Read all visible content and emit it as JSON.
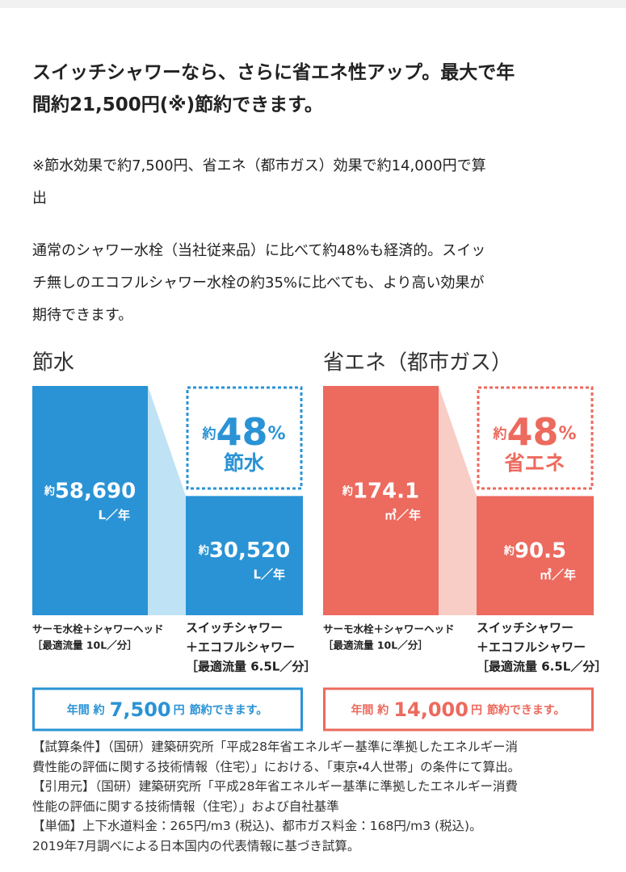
{
  "heading": [
    "スイッチシャワーなら、さらに省エネ性アップ。最大で年",
    "間約21,500円(※)節約できます。"
  ],
  "note": [
    "※節水効果で約7,500円、省エネ（都市ガス）効果で約14,000円で算",
    "出"
  ],
  "paragraph": [
    "通常のシャワー水栓（当社従来品）に比べて約48%も経済的。スイッ",
    "チ無しのエコフルシャワー水栓の約35%に比べても、より高い効果が",
    "期待できます。"
  ],
  "panels": [
    {
      "title": "節水",
      "color": "#2a93d5",
      "light": "#bfe2f5",
      "bars": [
        {
          "value": 58690,
          "prefix": "約",
          "value_label": "58,690",
          "unit": "L／年",
          "caption": [
            "サーモ水栓＋シャワーヘッド",
            "［最適流量 10L／分］"
          ]
        },
        {
          "value": 30520,
          "prefix": "約",
          "value_label": "30,520",
          "unit": "L／年",
          "caption": [
            "スイッチシャワー",
            "＋エコフルシャワー",
            "［最適流量 6.5L／分］"
          ]
        }
      ],
      "reduction": {
        "prefix": "約",
        "value": 48,
        "value_label": "48",
        "unit": "%",
        "label": "節水"
      },
      "savings": {
        "text1": "年間 約",
        "value": 7500,
        "value_label": "7,500",
        "unit": "円",
        "text2": "節約できます。"
      }
    },
    {
      "title": "省エネ（都市ガス）",
      "color": "#ec6a5e",
      "light": "#f8cdc6",
      "bars": [
        {
          "value": 174.1,
          "prefix": "約",
          "value_label": "174.1",
          "unit": "㎥／年",
          "caption": [
            "サーモ水栓＋シャワーヘッド",
            "［最適流量 10L／分］"
          ]
        },
        {
          "value": 90.5,
          "prefix": "約",
          "value_label": "90.5",
          "unit": "㎥／年",
          "caption": [
            "スイッチシャワー",
            "＋エコフルシャワー",
            "［最適流量 6.5L／分］"
          ]
        }
      ],
      "reduction": {
        "prefix": "約",
        "value": 48,
        "value_label": "48",
        "unit": "%",
        "label": "省エネ"
      },
      "savings": {
        "text1": "年間 約",
        "value": 14000,
        "value_label": "14,000",
        "unit": "円",
        "text2": "節約できます。"
      }
    }
  ],
  "footer": [
    "【試算条件】（国研）建築研究所「平成28年省エネルギー基準に準拠したエネルギー消",
    "費性能の評価に関する技術情報（住宅）」における、「東京・4人世帯」の条件にて算出。",
    "【引用元】（国研）建築研究所「平成28年省エネルギー基準に準拠したエネルギー消費",
    "性能の評価に関する技術情報（住宅）」および自社基準",
    "【単価】上下水道料金：265円/m3 (税込)、都市ガス料金：168円/m3 (税込)。",
    "2019年7月調べによる日本国内の代表情報に基づき試算。"
  ]
}
